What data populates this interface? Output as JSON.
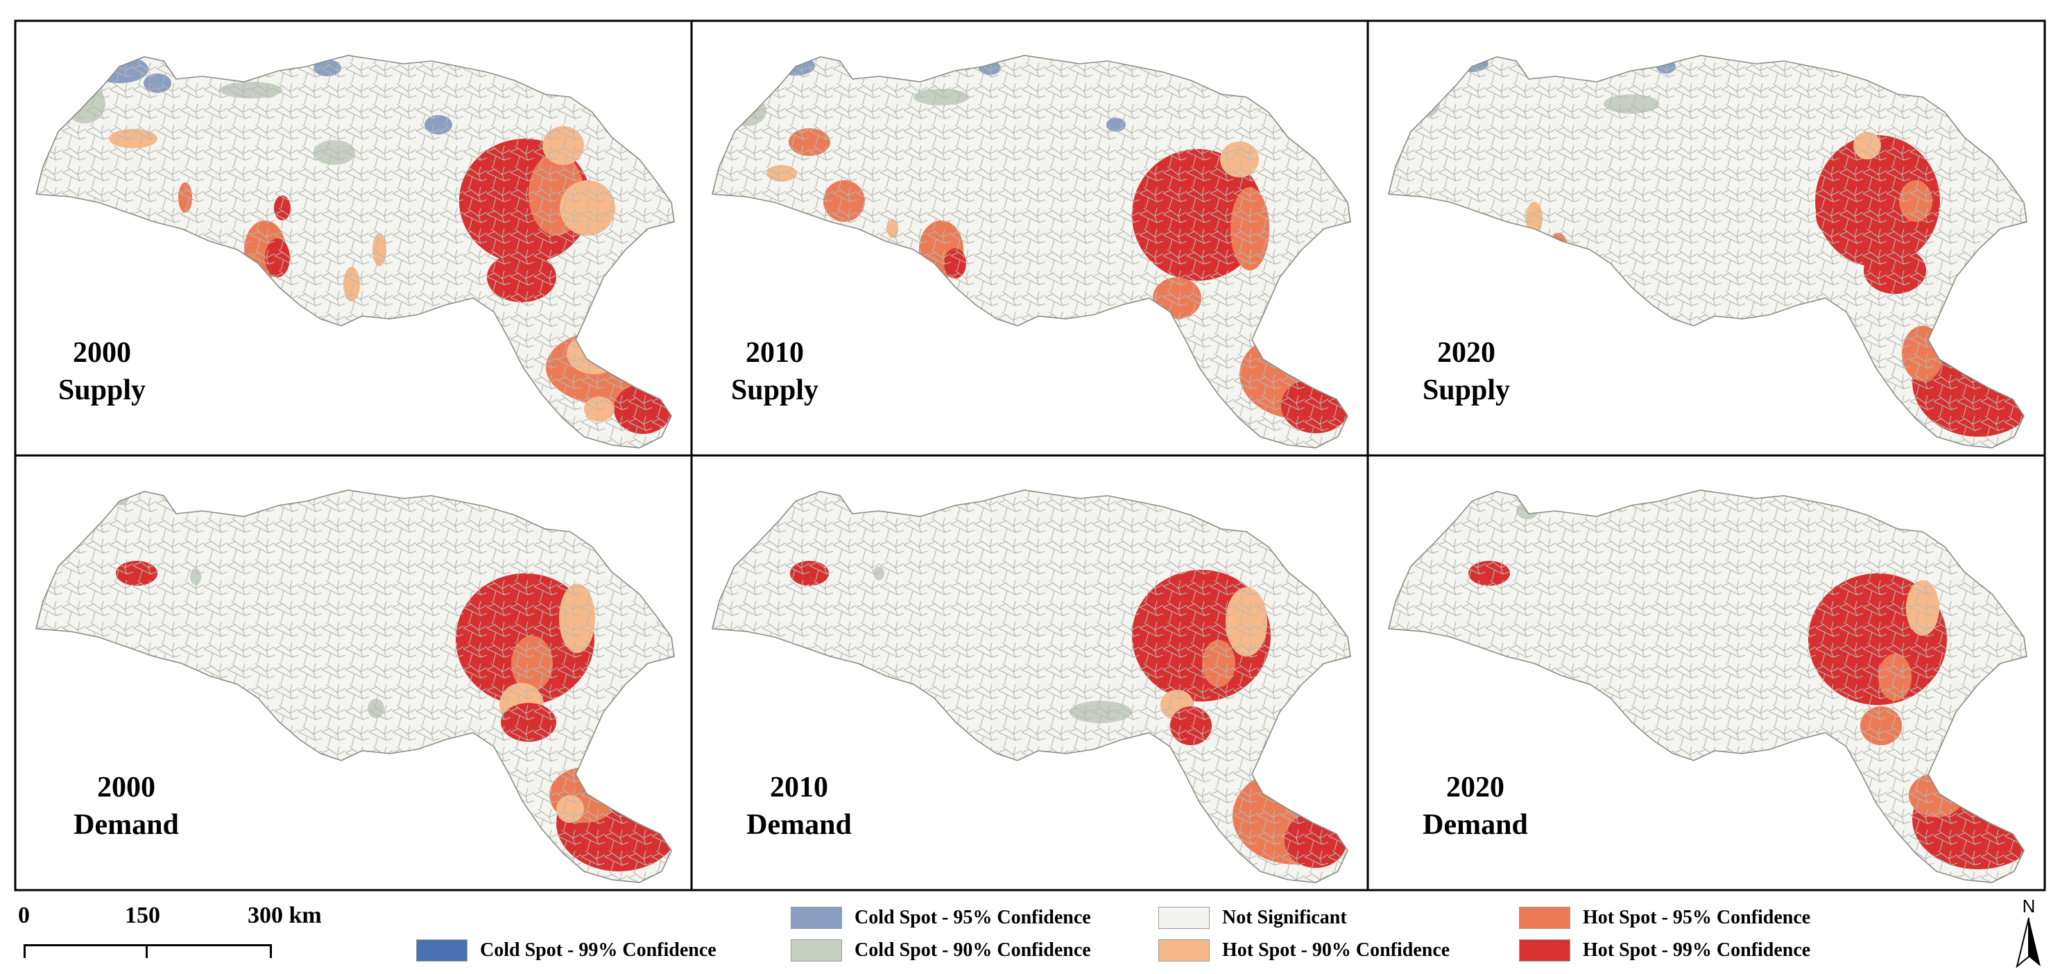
{
  "panels": [
    {
      "year": "2000",
      "kind": "Supply"
    },
    {
      "year": "2010",
      "kind": "Supply"
    },
    {
      "year": "2020",
      "kind": "Supply"
    },
    {
      "year": "2000",
      "kind": "Demand"
    },
    {
      "year": "2010",
      "kind": "Demand"
    },
    {
      "year": "2020",
      "kind": "Demand"
    }
  ],
  "scale_bar": {
    "labels": [
      "0",
      "150",
      "300 km"
    ]
  },
  "north_arrow": {
    "label": "N"
  },
  "legend": [
    {
      "label": "Cold Spot - 99% Confidence",
      "color": "#4a72b0"
    },
    {
      "label": "Cold Spot - 95% Confidence",
      "color": "#8a9fc1"
    },
    {
      "label": "Cold Spot - 90% Confidence",
      "color": "#c5cfc2"
    },
    {
      "label": "Not Significant",
      "color": "#f4f4f0"
    },
    {
      "label": "Hot Spot - 90% Confidence",
      "color": "#f7b98a"
    },
    {
      "label": "Hot Spot - 95% Confidence",
      "color": "#ec7a55"
    },
    {
      "label": "Hot Spot - 99% Confidence",
      "color": "#d83030"
    }
  ]
}
